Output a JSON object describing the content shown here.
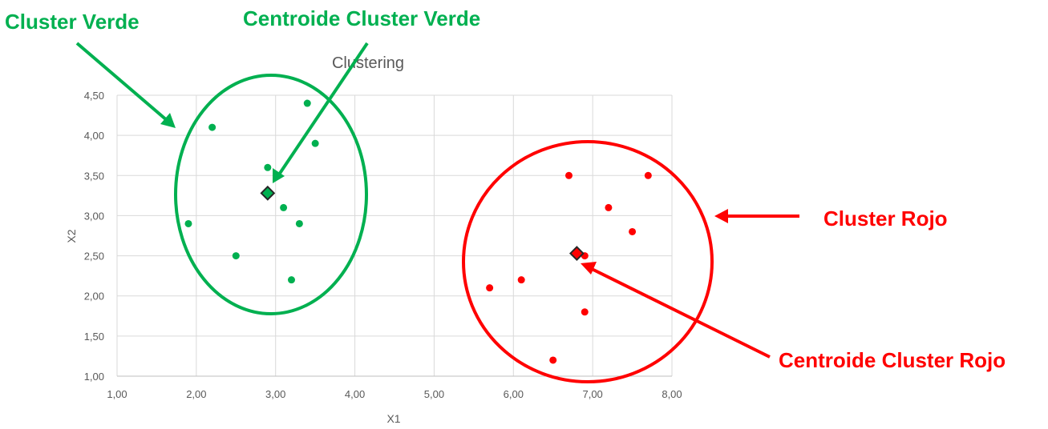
{
  "chart_data": {
    "type": "scatter",
    "title": "Clustering",
    "xlabel": "X1",
    "ylabel": "X2",
    "xlim": [
      1,
      8
    ],
    "ylim": [
      1,
      4.5
    ],
    "xticks": [
      "1,00",
      "2,00",
      "3,00",
      "4,00",
      "5,00",
      "6,00",
      "7,00",
      "8,00"
    ],
    "yticks": [
      "1,00",
      "1,50",
      "2,00",
      "2,50",
      "3,00",
      "3,50",
      "4,00",
      "4,50"
    ],
    "grid": true,
    "series": [
      {
        "color": "#00b050",
        "points": [
          {
            "x": 1.9,
            "y": 2.9
          },
          {
            "x": 2.2,
            "y": 4.1
          },
          {
            "x": 2.5,
            "y": 2.5
          },
          {
            "x": 2.9,
            "y": 3.6
          },
          {
            "x": 3.1,
            "y": 3.1
          },
          {
            "x": 3.2,
            "y": 2.2
          },
          {
            "x": 3.3,
            "y": 2.9
          },
          {
            "x": 3.4,
            "y": 4.4
          },
          {
            "x": 3.5,
            "y": 3.9
          }
        ],
        "centroid": {
          "x": 2.9,
          "y": 3.28
        }
      },
      {
        "color": "#ff0000",
        "points": [
          {
            "x": 5.7,
            "y": 2.1
          },
          {
            "x": 6.1,
            "y": 2.2
          },
          {
            "x": 6.5,
            "y": 1.2
          },
          {
            "x": 6.7,
            "y": 3.5
          },
          {
            "x": 6.9,
            "y": 2.5
          },
          {
            "x": 6.9,
            "y": 1.8
          },
          {
            "x": 7.2,
            "y": 3.1
          },
          {
            "x": 7.5,
            "y": 2.8
          },
          {
            "x": 7.7,
            "y": 3.5
          }
        ],
        "centroid": {
          "x": 6.8,
          "y": 2.53
        }
      }
    ]
  },
  "annotations": {
    "green_cluster": "Cluster Verde",
    "green_centroid": "Centroide Cluster Verde",
    "red_cluster": "Cluster Rojo",
    "red_centroid": "Centroide Cluster Rojo",
    "green_color": "#00b050",
    "red_color": "#ff0000"
  }
}
